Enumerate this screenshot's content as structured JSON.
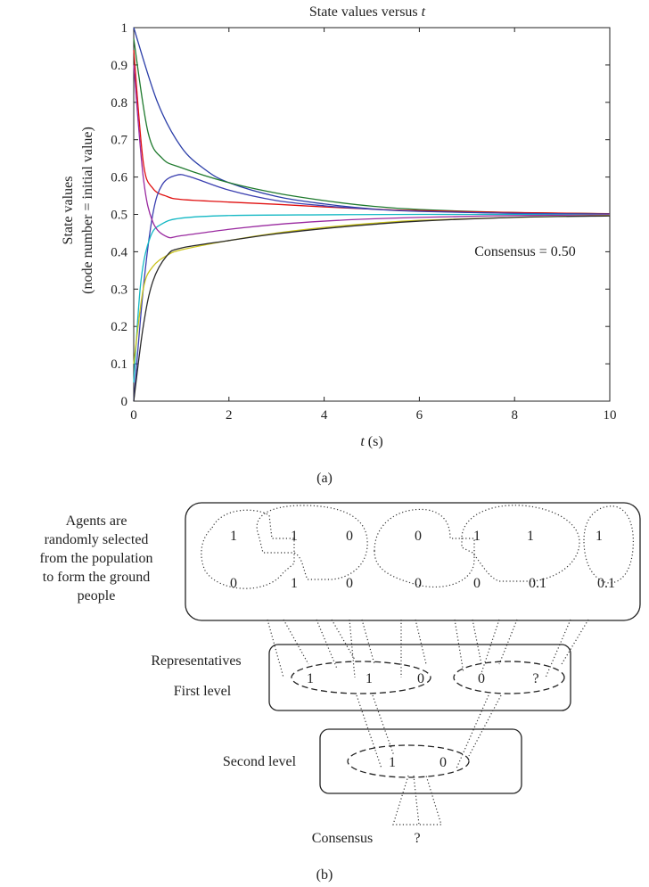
{
  "chart_data": {
    "type": "line",
    "title": "State values versus",
    "title_var": "t",
    "xlabel_var": "t",
    "xlabel_unit": "(s)",
    "ylabel_line1": "State values",
    "ylabel_line2": "(node number = initial value)",
    "annotation": "Consensus = 0.50",
    "xlim": [
      0,
      10
    ],
    "ylim": [
      0,
      1
    ],
    "x_ticks": [
      "0",
      "2",
      "4",
      "6",
      "8",
      "10"
    ],
    "y_ticks": [
      "0",
      "0.1",
      "0.2",
      "0.3",
      "0.4",
      "0.5",
      "0.6",
      "0.7",
      "0.8",
      "0.9",
      "1"
    ],
    "grid": false,
    "series": [
      {
        "color": "#2b3ea8",
        "points": [
          [
            0,
            1
          ],
          [
            0.5,
            0.8
          ],
          [
            1,
            0.68
          ],
          [
            1.5,
            0.62
          ],
          [
            2,
            0.585
          ],
          [
            3,
            0.548
          ],
          [
            4,
            0.528
          ],
          [
            5,
            0.515
          ],
          [
            6,
            0.509
          ],
          [
            8,
            0.503
          ],
          [
            10,
            0.501
          ]
        ]
      },
      {
        "color": "#1f7a2e",
        "points": [
          [
            0,
            0.97
          ],
          [
            0.3,
            0.72
          ],
          [
            0.6,
            0.65
          ],
          [
            1,
            0.625
          ],
          [
            2,
            0.585
          ],
          [
            3,
            0.557
          ],
          [
            4,
            0.537
          ],
          [
            5,
            0.522
          ],
          [
            6,
            0.513
          ],
          [
            8,
            0.505
          ],
          [
            10,
            0.502
          ]
        ]
      },
      {
        "color": "#e01010",
        "points": [
          [
            0,
            0.94
          ],
          [
            0.2,
            0.64
          ],
          [
            0.4,
            0.57
          ],
          [
            0.7,
            0.548
          ],
          [
            1,
            0.54
          ],
          [
            2,
            0.533
          ],
          [
            3,
            0.527
          ],
          [
            4,
            0.52
          ],
          [
            5,
            0.514
          ],
          [
            6,
            0.51
          ],
          [
            8,
            0.505
          ],
          [
            10,
            0.502
          ]
        ]
      },
      {
        "color": "#3a3fb0",
        "points": [
          [
            0,
            0
          ],
          [
            0.2,
            0.3
          ],
          [
            0.4,
            0.5
          ],
          [
            0.6,
            0.58
          ],
          [
            0.9,
            0.605
          ],
          [
            1.2,
            0.6
          ],
          [
            2,
            0.565
          ],
          [
            3,
            0.537
          ],
          [
            4,
            0.523
          ],
          [
            5,
            0.514
          ],
          [
            6,
            0.508
          ],
          [
            8,
            0.503
          ],
          [
            10,
            0.501
          ]
        ]
      },
      {
        "color": "#13b8c4",
        "points": [
          [
            0,
            0.05
          ],
          [
            0.15,
            0.32
          ],
          [
            0.35,
            0.44
          ],
          [
            0.6,
            0.475
          ],
          [
            1,
            0.49
          ],
          [
            2,
            0.497
          ],
          [
            4,
            0.499
          ],
          [
            6,
            0.5
          ],
          [
            10,
            0.5
          ]
        ]
      },
      {
        "color": "#9a2aa0",
        "points": [
          [
            0,
            0.9
          ],
          [
            0.2,
            0.6
          ],
          [
            0.4,
            0.48
          ],
          [
            0.7,
            0.44
          ],
          [
            1,
            0.443
          ],
          [
            2,
            0.46
          ],
          [
            3,
            0.473
          ],
          [
            4,
            0.482
          ],
          [
            5,
            0.488
          ],
          [
            6,
            0.492
          ],
          [
            8,
            0.497
          ],
          [
            10,
            0.499
          ]
        ]
      },
      {
        "color": "#c9c21a",
        "points": [
          [
            0,
            0.1
          ],
          [
            0.2,
            0.3
          ],
          [
            0.4,
            0.36
          ],
          [
            0.7,
            0.39
          ],
          [
            1,
            0.405
          ],
          [
            2,
            0.43
          ],
          [
            3,
            0.45
          ],
          [
            4,
            0.465
          ],
          [
            5,
            0.476
          ],
          [
            6,
            0.484
          ],
          [
            8,
            0.492
          ],
          [
            10,
            0.497
          ]
        ]
      },
      {
        "color": "#2a2a2a",
        "points": [
          [
            0,
            0
          ],
          [
            0.2,
            0.2
          ],
          [
            0.4,
            0.32
          ],
          [
            0.7,
            0.39
          ],
          [
            1,
            0.41
          ],
          [
            2,
            0.43
          ],
          [
            3,
            0.448
          ],
          [
            4,
            0.462
          ],
          [
            5,
            0.473
          ],
          [
            6,
            0.482
          ],
          [
            8,
            0.492
          ],
          [
            10,
            0.496
          ]
        ]
      }
    ]
  },
  "caption_a": "(a)",
  "caption_b": "(b)",
  "diagram": {
    "ground_label_lines": [
      "Agents are",
      "randomly selected",
      "from the population",
      "to form the ground",
      "people"
    ],
    "ground_values": [
      "1",
      "1",
      "0",
      "0",
      "1",
      "0",
      "1",
      "0",
      "1",
      "1",
      "0",
      "0",
      "0.1",
      "0.1"
    ],
    "representatives_label": "Representatives",
    "first_level_label": "First level",
    "first_values": [
      "1",
      "1",
      "0",
      "0",
      "?"
    ],
    "second_level_label": "Second level",
    "second_values": [
      "1",
      "0"
    ],
    "consensus_label": "Consensus",
    "consensus_value": "?"
  }
}
